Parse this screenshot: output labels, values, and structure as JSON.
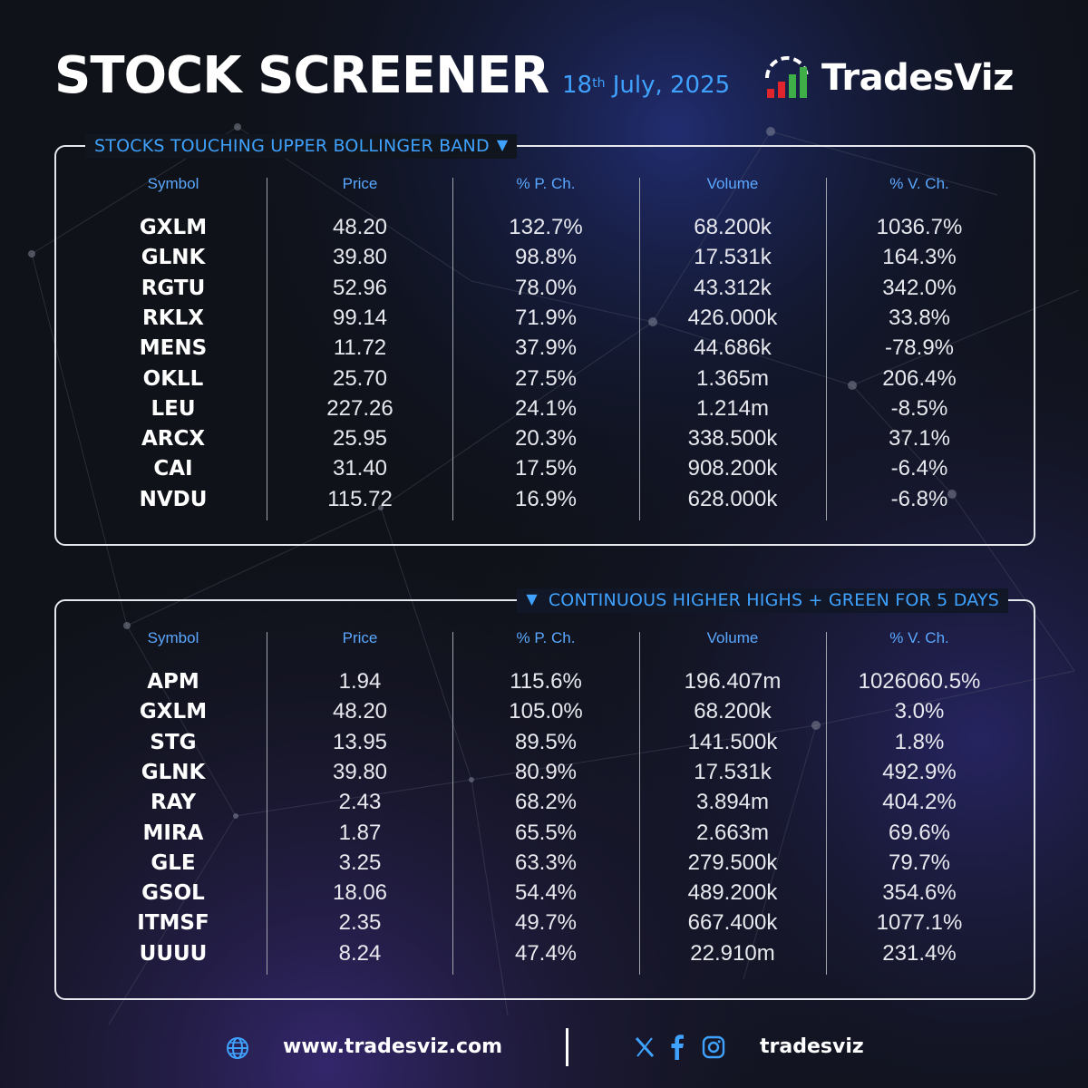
{
  "header": {
    "title": "STOCK SCREENER",
    "date_day": "18",
    "date_suffix": "th",
    "date_rest": " July, 2025",
    "brand": "TradesViz"
  },
  "colors": {
    "accent": "#3fa2ff",
    "background": "#0f1218",
    "panel_border": "#e6e8ee",
    "logo_red": "#e0262c",
    "logo_green": "#3fae49"
  },
  "column_headers": [
    "Symbol",
    "Price",
    "% P. Ch.",
    "Volume",
    "% V. Ch."
  ],
  "sections": [
    {
      "title": "STOCKS TOUCHING UPPER BOLLINGER BAND",
      "icon": "triangle-down-icon",
      "rows": [
        {
          "symbol": "GXLM",
          "price": "48.20",
          "pch": "132.7%",
          "volume": "68.200k",
          "vch": "1036.7%"
        },
        {
          "symbol": "GLNK",
          "price": "39.80",
          "pch": "98.8%",
          "volume": "17.531k",
          "vch": "164.3%"
        },
        {
          "symbol": "RGTU",
          "price": "52.96",
          "pch": "78.0%",
          "volume": "43.312k",
          "vch": "342.0%"
        },
        {
          "symbol": "RKLX",
          "price": "99.14",
          "pch": "71.9%",
          "volume": "426.000k",
          "vch": "33.8%"
        },
        {
          "symbol": "MENS",
          "price": "11.72",
          "pch": "37.9%",
          "volume": "44.686k",
          "vch": "-78.9%"
        },
        {
          "symbol": "OKLL",
          "price": "25.70",
          "pch": "27.5%",
          "volume": "1.365m",
          "vch": "206.4%"
        },
        {
          "symbol": "LEU",
          "price": "227.26",
          "pch": "24.1%",
          "volume": "1.214m",
          "vch": "-8.5%"
        },
        {
          "symbol": "ARCX",
          "price": "25.95",
          "pch": "20.3%",
          "volume": "338.500k",
          "vch": "37.1%"
        },
        {
          "symbol": "CAI",
          "price": "31.40",
          "pch": "17.5%",
          "volume": "908.200k",
          "vch": "-6.4%"
        },
        {
          "symbol": "NVDU",
          "price": "115.72",
          "pch": "16.9%",
          "volume": "628.000k",
          "vch": "-6.8%"
        }
      ]
    },
    {
      "title": "CONTINUOUS HIGHER HIGHS + GREEN FOR 5 DAYS",
      "icon": "triangle-down-icon",
      "rows": [
        {
          "symbol": "APM",
          "price": "1.94",
          "pch": "115.6%",
          "volume": "196.407m",
          "vch": "1026060.5%"
        },
        {
          "symbol": "GXLM",
          "price": "48.20",
          "pch": "105.0%",
          "volume": "68.200k",
          "vch": "3.0%"
        },
        {
          "symbol": "STG",
          "price": "13.95",
          "pch": "89.5%",
          "volume": "141.500k",
          "vch": "1.8%"
        },
        {
          "symbol": "GLNK",
          "price": "39.80",
          "pch": "80.9%",
          "volume": "17.531k",
          "vch": "492.9%"
        },
        {
          "symbol": "RAY",
          "price": "2.43",
          "pch": "68.2%",
          "volume": "3.894m",
          "vch": "404.2%"
        },
        {
          "symbol": "MIRA",
          "price": "1.87",
          "pch": "65.5%",
          "volume": "2.663m",
          "vch": "69.6%"
        },
        {
          "symbol": "GLE",
          "price": "3.25",
          "pch": "63.3%",
          "volume": "279.500k",
          "vch": "79.7%"
        },
        {
          "symbol": "GSOL",
          "price": "18.06",
          "pch": "54.4%",
          "volume": "489.200k",
          "vch": "354.6%"
        },
        {
          "symbol": "ITMSF",
          "price": "2.35",
          "pch": "49.7%",
          "volume": "667.400k",
          "vch": "1077.1%"
        },
        {
          "symbol": "UUUU",
          "price": "8.24",
          "pch": "47.4%",
          "volume": "22.910m",
          "vch": "231.4%"
        }
      ]
    }
  ],
  "footer": {
    "website": "www.tradesviz.com",
    "handle": "tradesviz",
    "icons": [
      "globe-icon",
      "x-icon",
      "facebook-icon",
      "instagram-icon"
    ]
  }
}
